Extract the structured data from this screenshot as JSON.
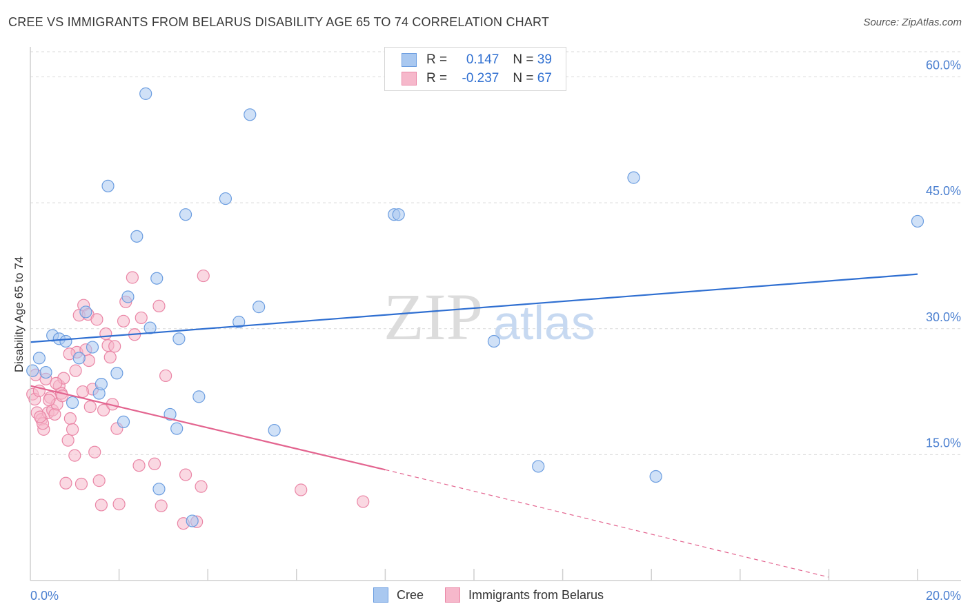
{
  "title": "CREE VS IMMIGRANTS FROM BELARUS DISABILITY AGE 65 TO 74 CORRELATION CHART",
  "source": "Source: ZipAtlas.com",
  "watermark": {
    "zip": "ZIP",
    "atlas": "atlas"
  },
  "colors": {
    "cree_fill": "#a9c8f0",
    "cree_stroke": "#6b9de0",
    "cree_line": "#2f6fd1",
    "belarus_fill": "#f6b8cb",
    "belarus_stroke": "#ea86a6",
    "belarus_line": "#e3648f",
    "grid": "#d9d9d9",
    "axis_text": "#4a7fd0"
  },
  "legend": {
    "rows": [
      {
        "r_label": "R = ",
        "r_value": "0.147",
        "n_label": "N = ",
        "n_value": "39"
      },
      {
        "r_label": "R = ",
        "r_value": "-0.237",
        "n_label": "N = ",
        "n_value": "67"
      }
    ]
  },
  "chart_data": {
    "type": "scatter",
    "title": "CREE VS IMMIGRANTS FROM BELARUS DISABILITY AGE 65 TO 74 CORRELATION CHART",
    "xlabel": "",
    "ylabel": "Disability Age 65 to 74",
    "xlim": [
      0,
      20
    ],
    "ylim": [
      0,
      63
    ],
    "x_tick_labels": [
      "0.0%",
      "20.0%"
    ],
    "y_ticks": [
      15,
      30,
      45,
      60
    ],
    "y_tick_labels": [
      "15.0%",
      "30.0%",
      "45.0%",
      "60.0%"
    ],
    "grid": true,
    "legend_position": "top-center",
    "series": [
      {
        "name": "Cree",
        "r": 0.147,
        "n": 39,
        "trend": {
          "x0": 0,
          "y0": 28.4,
          "x1": 20,
          "y1": 36.5
        },
        "points": [
          [
            0.05,
            25.0
          ],
          [
            0.2,
            26.5
          ],
          [
            0.35,
            24.8
          ],
          [
            0.5,
            29.2
          ],
          [
            0.65,
            28.8
          ],
          [
            0.8,
            28.5
          ],
          [
            0.95,
            21.2
          ],
          [
            1.1,
            26.5
          ],
          [
            1.25,
            32.0
          ],
          [
            1.4,
            27.8
          ],
          [
            1.55,
            22.3
          ],
          [
            1.6,
            23.4
          ],
          [
            1.75,
            47.0
          ],
          [
            1.95,
            24.7
          ],
          [
            2.1,
            18.9
          ],
          [
            2.2,
            33.8
          ],
          [
            2.4,
            41.0
          ],
          [
            2.6,
            58.0
          ],
          [
            2.7,
            30.1
          ],
          [
            2.85,
            36.0
          ],
          [
            2.9,
            10.9
          ],
          [
            3.15,
            19.8
          ],
          [
            3.3,
            18.1
          ],
          [
            3.35,
            28.8
          ],
          [
            3.5,
            43.6
          ],
          [
            3.65,
            7.1
          ],
          [
            3.8,
            21.9
          ],
          [
            4.4,
            45.5
          ],
          [
            4.7,
            30.8
          ],
          [
            4.95,
            55.5
          ],
          [
            5.15,
            32.6
          ],
          [
            5.5,
            17.9
          ],
          [
            8.2,
            43.6
          ],
          [
            8.3,
            43.6
          ],
          [
            10.45,
            28.5
          ],
          [
            11.45,
            13.6
          ],
          [
            13.6,
            48.0
          ],
          [
            14.1,
            12.4
          ],
          [
            20.0,
            42.8
          ]
        ]
      },
      {
        "name": "Immigrants from Belarus",
        "r": -0.237,
        "n": 67,
        "trend": {
          "x0": 0,
          "y0": 23.2,
          "x1": 8.0,
          "y1": 13.2
        },
        "trend_dashed": {
          "x0": 8.0,
          "y0": 13.2,
          "x1": 18.0,
          "y1": 0.4
        },
        "points": [
          [
            0.05,
            22.2
          ],
          [
            0.1,
            21.6
          ],
          [
            0.15,
            20.0
          ],
          [
            0.2,
            22.6
          ],
          [
            0.25,
            19.2
          ],
          [
            0.3,
            18.0
          ],
          [
            0.35,
            24.0
          ],
          [
            0.4,
            20.0
          ],
          [
            0.45,
            21.8
          ],
          [
            0.5,
            20.3
          ],
          [
            0.55,
            19.8
          ],
          [
            0.6,
            21.0
          ],
          [
            0.65,
            23.2
          ],
          [
            0.7,
            22.3
          ],
          [
            0.75,
            24.1
          ],
          [
            0.8,
            11.6
          ],
          [
            0.85,
            16.7
          ],
          [
            0.9,
            19.3
          ],
          [
            0.95,
            18.0
          ],
          [
            1.0,
            14.9
          ],
          [
            1.05,
            27.2
          ],
          [
            1.1,
            31.6
          ],
          [
            1.15,
            11.5
          ],
          [
            1.2,
            32.8
          ],
          [
            1.25,
            27.5
          ],
          [
            1.3,
            31.7
          ],
          [
            1.35,
            20.7
          ],
          [
            1.4,
            22.8
          ],
          [
            1.45,
            15.3
          ],
          [
            1.5,
            31.1
          ],
          [
            1.55,
            11.9
          ],
          [
            1.6,
            9.0
          ],
          [
            1.65,
            20.3
          ],
          [
            1.7,
            29.4
          ],
          [
            1.75,
            28.0
          ],
          [
            1.8,
            26.6
          ],
          [
            1.85,
            21.0
          ],
          [
            1.9,
            27.9
          ],
          [
            1.95,
            18.1
          ],
          [
            2.0,
            9.1
          ],
          [
            2.1,
            30.9
          ],
          [
            2.15,
            33.2
          ],
          [
            2.3,
            36.1
          ],
          [
            2.35,
            29.3
          ],
          [
            2.45,
            13.7
          ],
          [
            2.5,
            31.3
          ],
          [
            2.8,
            13.9
          ],
          [
            2.9,
            32.7
          ],
          [
            2.95,
            8.9
          ],
          [
            3.05,
            24.4
          ],
          [
            3.45,
            6.8
          ],
          [
            3.5,
            12.6
          ],
          [
            3.75,
            7.0
          ],
          [
            3.85,
            11.2
          ],
          [
            3.9,
            36.3
          ],
          [
            6.1,
            10.8
          ],
          [
            7.5,
            9.4
          ],
          [
            0.12,
            24.5
          ],
          [
            0.28,
            18.7
          ],
          [
            0.42,
            21.5
          ],
          [
            0.58,
            23.5
          ],
          [
            0.72,
            22.0
          ],
          [
            0.88,
            27.0
          ],
          [
            1.02,
            25.0
          ],
          [
            1.18,
            22.5
          ],
          [
            1.32,
            26.2
          ],
          [
            0.22,
            19.5
          ]
        ]
      }
    ]
  }
}
